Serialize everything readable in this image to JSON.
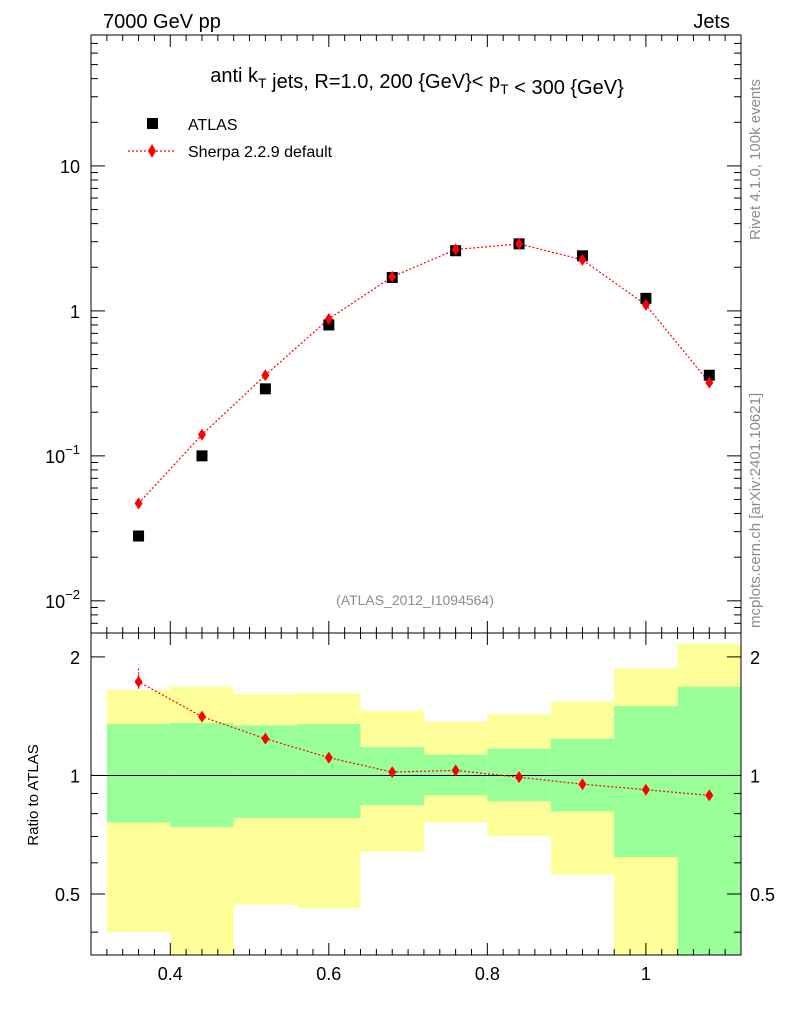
{
  "header": {
    "left": "7000 GeV pp",
    "right": "Jets"
  },
  "side": {
    "rivet": "Rivet 4.1.0,  100k events",
    "mcplots": "mcplots.cern.ch [arXiv:2401.10621]"
  },
  "chart_data": [
    {
      "type": "scatter",
      "panel": "main",
      "title": "anti k_T jets, R=1.0,  200 {GeV}< p_T < 300 {GeV}",
      "analysis_label": "(ATLAS_2012_I1094564)",
      "yscale": "log",
      "xlim": [
        0.3,
        1.12
      ],
      "ylim": [
        0.006,
        80
      ],
      "x": [
        0.36,
        0.44,
        0.52,
        0.6,
        0.68,
        0.76,
        0.84,
        0.92,
        1.0,
        1.08
      ],
      "y_tick_labels": [
        {
          "base": "10",
          "exp": "−2",
          "value": 0.01
        },
        {
          "base": "10",
          "exp": "−1",
          "value": 0.1
        },
        {
          "base": "1",
          "exp": "",
          "value": 1
        },
        {
          "base": "10",
          "exp": "",
          "value": 10
        }
      ],
      "series": [
        {
          "name": "ATLAS",
          "marker": "square",
          "color": "#000000",
          "values": [
            0.028,
            0.1,
            0.29,
            0.8,
            1.7,
            2.6,
            2.9,
            2.4,
            1.22,
            0.36
          ]
        },
        {
          "name": "Sherpa 2.2.9 default",
          "marker": "diamond",
          "line": "dotted",
          "color": "#ff0000",
          "values": [
            0.047,
            0.14,
            0.36,
            0.88,
            1.72,
            2.65,
            2.9,
            2.25,
            1.1,
            0.32
          ]
        }
      ]
    },
    {
      "type": "scatter",
      "panel": "ratio",
      "ylabel": "Ratio to ATLAS",
      "xlim": [
        0.3,
        1.12
      ],
      "ylim": [
        0.35,
        2.3
      ],
      "x_ticks": [
        0.4,
        0.6,
        0.8,
        1.0
      ],
      "x_tick_labels": [
        "0.4",
        "0.6",
        "0.8",
        "1"
      ],
      "y_ticks": [
        0.5,
        1,
        2
      ],
      "y_tick_labels": [
        "0.5",
        "1",
        "2"
      ],
      "reference_line": 1,
      "bins": [
        {
          "lo": 0.32,
          "hi": 0.4,
          "yellow": [
            0.4,
            1.65
          ],
          "green": [
            0.76,
            1.35
          ]
        },
        {
          "lo": 0.4,
          "hi": 0.48,
          "yellow": [
            0.3,
            1.68
          ],
          "green": [
            0.74,
            1.36
          ]
        },
        {
          "lo": 0.48,
          "hi": 0.56,
          "yellow": [
            0.47,
            1.61
          ],
          "green": [
            0.78,
            1.34
          ]
        },
        {
          "lo": 0.56,
          "hi": 0.64,
          "yellow": [
            0.46,
            1.62
          ],
          "green": [
            0.78,
            1.35
          ]
        },
        {
          "lo": 0.64,
          "hi": 0.72,
          "yellow": [
            0.64,
            1.46
          ],
          "green": [
            0.84,
            1.18
          ]
        },
        {
          "lo": 0.72,
          "hi": 0.8,
          "yellow": [
            0.76,
            1.37
          ],
          "green": [
            0.89,
            1.13
          ]
        },
        {
          "lo": 0.8,
          "hi": 0.88,
          "yellow": [
            0.7,
            1.43
          ],
          "green": [
            0.86,
            1.17
          ]
        },
        {
          "lo": 0.88,
          "hi": 0.96,
          "yellow": [
            0.56,
            1.54
          ],
          "green": [
            0.81,
            1.24
          ]
        },
        {
          "lo": 0.96,
          "hi": 1.04,
          "yellow": [
            0.3,
            1.87
          ],
          "green": [
            0.62,
            1.5
          ]
        },
        {
          "lo": 1.04,
          "hi": 1.12,
          "yellow": [
            0.3,
            2.16
          ],
          "green": [
            0.3,
            1.68
          ]
        }
      ],
      "series": [
        {
          "name": "Sherpa 2.2.9 default / ATLAS",
          "color": "#ff0000",
          "values": [
            1.73,
            1.41,
            1.24,
            1.11,
            1.02,
            1.03,
            0.99,
            0.95,
            0.92,
            0.89
          ],
          "errors": [
            0.07,
            0.04,
            0.02,
            0.015,
            0.01,
            0.01,
            0.01,
            0.01,
            0.015,
            0.02
          ]
        }
      ],
      "start_line_y": 1.87
    }
  ]
}
